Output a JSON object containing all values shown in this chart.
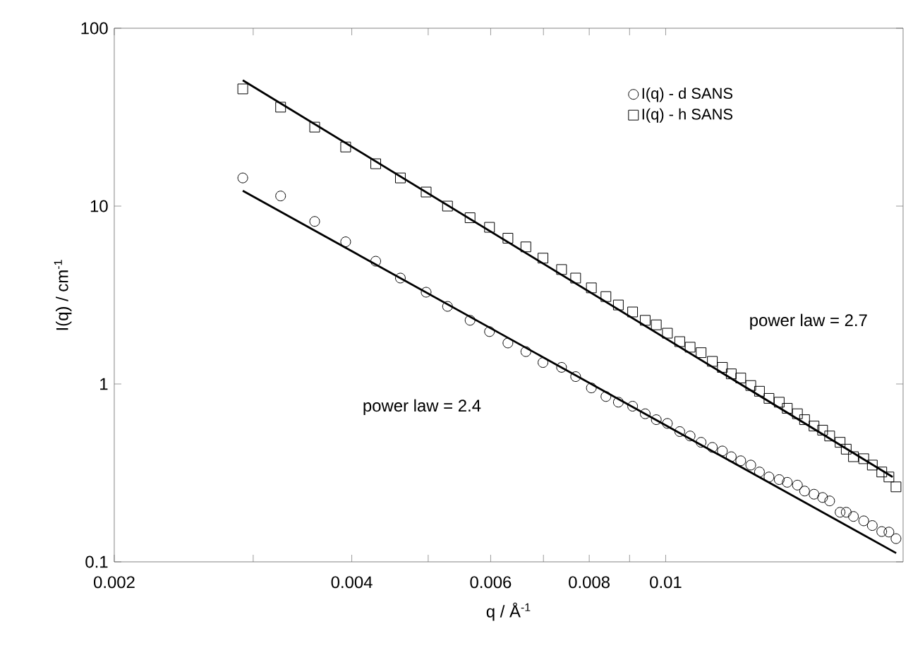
{
  "chart_data": {
    "type": "scatter",
    "xlabel": "q / Å$^{-1}$",
    "ylabel": "I(q) / cm$^{-1}$",
    "log": "xy",
    "xlim": [
      0.002,
      0.02
    ],
    "ylim": [
      0.1,
      100
    ],
    "xticks": [
      0.002,
      {
        "value": 0.003,
        "label": null
      },
      0.004,
      {
        "value": 0.005,
        "label": null
      },
      0.006,
      {
        "value": 0.007,
        "label": null
      },
      0.008,
      {
        "value": 0.009,
        "label": null
      },
      0.01
    ],
    "yticks": [
      0.1,
      1,
      10,
      100
    ],
    "legend": "top right",
    "series": [
      {
        "name": "I(q) - d SANS",
        "color": "#000000",
        "marker": "circle",
        "x": [
          0.00291,
          0.00325,
          0.00359,
          0.00393,
          0.00429,
          0.00461,
          0.00497,
          0.00529,
          0.00565,
          0.00598,
          0.00631,
          0.00665,
          0.00699,
          0.00738,
          0.00769,
          0.00805,
          0.0084,
          0.00871,
          0.00908,
          0.00942,
          0.00973,
          0.01005,
          0.01042,
          0.01074,
          0.01109,
          0.01146,
          0.0118,
          0.01211,
          0.01245,
          0.01282,
          0.01315,
          0.01352,
          0.01393,
          0.01426,
          0.01469,
          0.015,
          0.01542,
          0.01581,
          0.01614,
          0.01664,
          0.01694,
          0.0173,
          0.01783,
          0.01828,
          0.01879,
          0.01919,
          0.01959
        ],
        "values": [
          14.4,
          11.4,
          8.2,
          6.3,
          4.9,
          3.94,
          3.28,
          2.73,
          2.28,
          1.97,
          1.7,
          1.52,
          1.32,
          1.24,
          1.1,
          0.95,
          0.85,
          0.79,
          0.75,
          0.68,
          0.63,
          0.6,
          0.54,
          0.51,
          0.47,
          0.44,
          0.42,
          0.39,
          0.37,
          0.35,
          0.32,
          0.3,
          0.29,
          0.28,
          0.27,
          0.25,
          0.24,
          0.23,
          0.22,
          0.19,
          0.19,
          0.18,
          0.17,
          0.16,
          0.148,
          0.147,
          0.135
        ]
      },
      {
        "name": "I(q) - h SANS",
        "color": "#000000",
        "marker": "square",
        "x": [
          0.00291,
          0.00325,
          0.00359,
          0.00393,
          0.00429,
          0.00461,
          0.00497,
          0.00529,
          0.00565,
          0.00598,
          0.00631,
          0.00665,
          0.00699,
          0.00738,
          0.00769,
          0.00805,
          0.0084,
          0.00871,
          0.00908,
          0.00942,
          0.00973,
          0.01005,
          0.01042,
          0.01074,
          0.01109,
          0.01146,
          0.0118,
          0.01211,
          0.01245,
          0.01282,
          0.01315,
          0.01352,
          0.01393,
          0.01426,
          0.01469,
          0.015,
          0.01542,
          0.01581,
          0.01614,
          0.01664,
          0.01694,
          0.0173,
          0.01783,
          0.01828,
          0.01879,
          0.01919,
          0.01959
        ],
        "values": [
          45.6,
          36,
          27.8,
          21.5,
          17.3,
          14.4,
          12,
          10,
          8.6,
          7.6,
          6.6,
          5.9,
          5.1,
          4.4,
          3.94,
          3.47,
          3.1,
          2.78,
          2.54,
          2.28,
          2.15,
          1.93,
          1.73,
          1.61,
          1.5,
          1.34,
          1.24,
          1.14,
          1.08,
          0.98,
          0.91,
          0.83,
          0.79,
          0.73,
          0.68,
          0.63,
          0.58,
          0.55,
          0.51,
          0.47,
          0.43,
          0.39,
          0.38,
          0.35,
          0.32,
          0.3,
          0.264
        ]
      },
      {
        "type": "line",
        "color": "#000000",
        "marker": "none",
        "x": [
          0.00291,
          0.0196
        ],
        "values": [
          12.2,
          0.112
        ]
      },
      {
        "type": "line",
        "color": "#000000",
        "marker": "none",
        "x": [
          0.00291,
          0.0194
        ],
        "values": [
          51,
          0.3
        ]
      }
    ],
    "annotations": [
      "power law = 2.7",
      "power law = 2.4"
    ]
  }
}
